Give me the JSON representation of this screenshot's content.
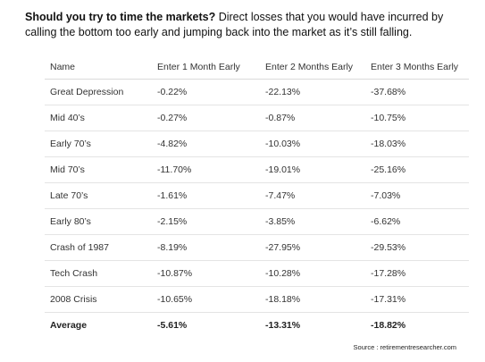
{
  "header": {
    "lead": "Should you try to time the markets?",
    "text": " Direct losses that you would have incurred by calling the bottom too early and jumping back into the market as it’s still falling."
  },
  "colors": {
    "text": "#202020",
    "divider": "#e4e4e4",
    "background": "#ffffff"
  },
  "chart_data": {
    "type": "table",
    "columns": [
      "Name",
      "Enter 1 Month Early",
      "Enter 2 Months Early",
      "Enter 3 Months Early"
    ],
    "rows": [
      [
        "Great Depression",
        "-0.22%",
        "-22.13%",
        "-37.68%"
      ],
      [
        "Mid 40’s",
        "-0.27%",
        "-0.87%",
        "-10.75%"
      ],
      [
        "Early 70’s",
        "-4.82%",
        "-10.03%",
        "-18.03%"
      ],
      [
        "Mid 70’s",
        "-11.70%",
        "-19.01%",
        "-25.16%"
      ],
      [
        "Late 70’s",
        "-1.61%",
        "-7.47%",
        "-7.03%"
      ],
      [
        "Early 80’s",
        "-2.15%",
        "-3.85%",
        "-6.62%"
      ],
      [
        "Crash of 1987",
        "-8.19%",
        "-27.95%",
        "-29.53%"
      ],
      [
        "Tech Crash",
        "-10.87%",
        "-10.28%",
        "-17.28%"
      ],
      [
        "2008 Crisis",
        "-10.65%",
        "-18.18%",
        "-17.31%"
      ],
      [
        "Average",
        "-5.61%",
        "-13.31%",
        "-18.82%"
      ]
    ]
  },
  "footer": {
    "source": "Source : retirementresearcher.com"
  }
}
